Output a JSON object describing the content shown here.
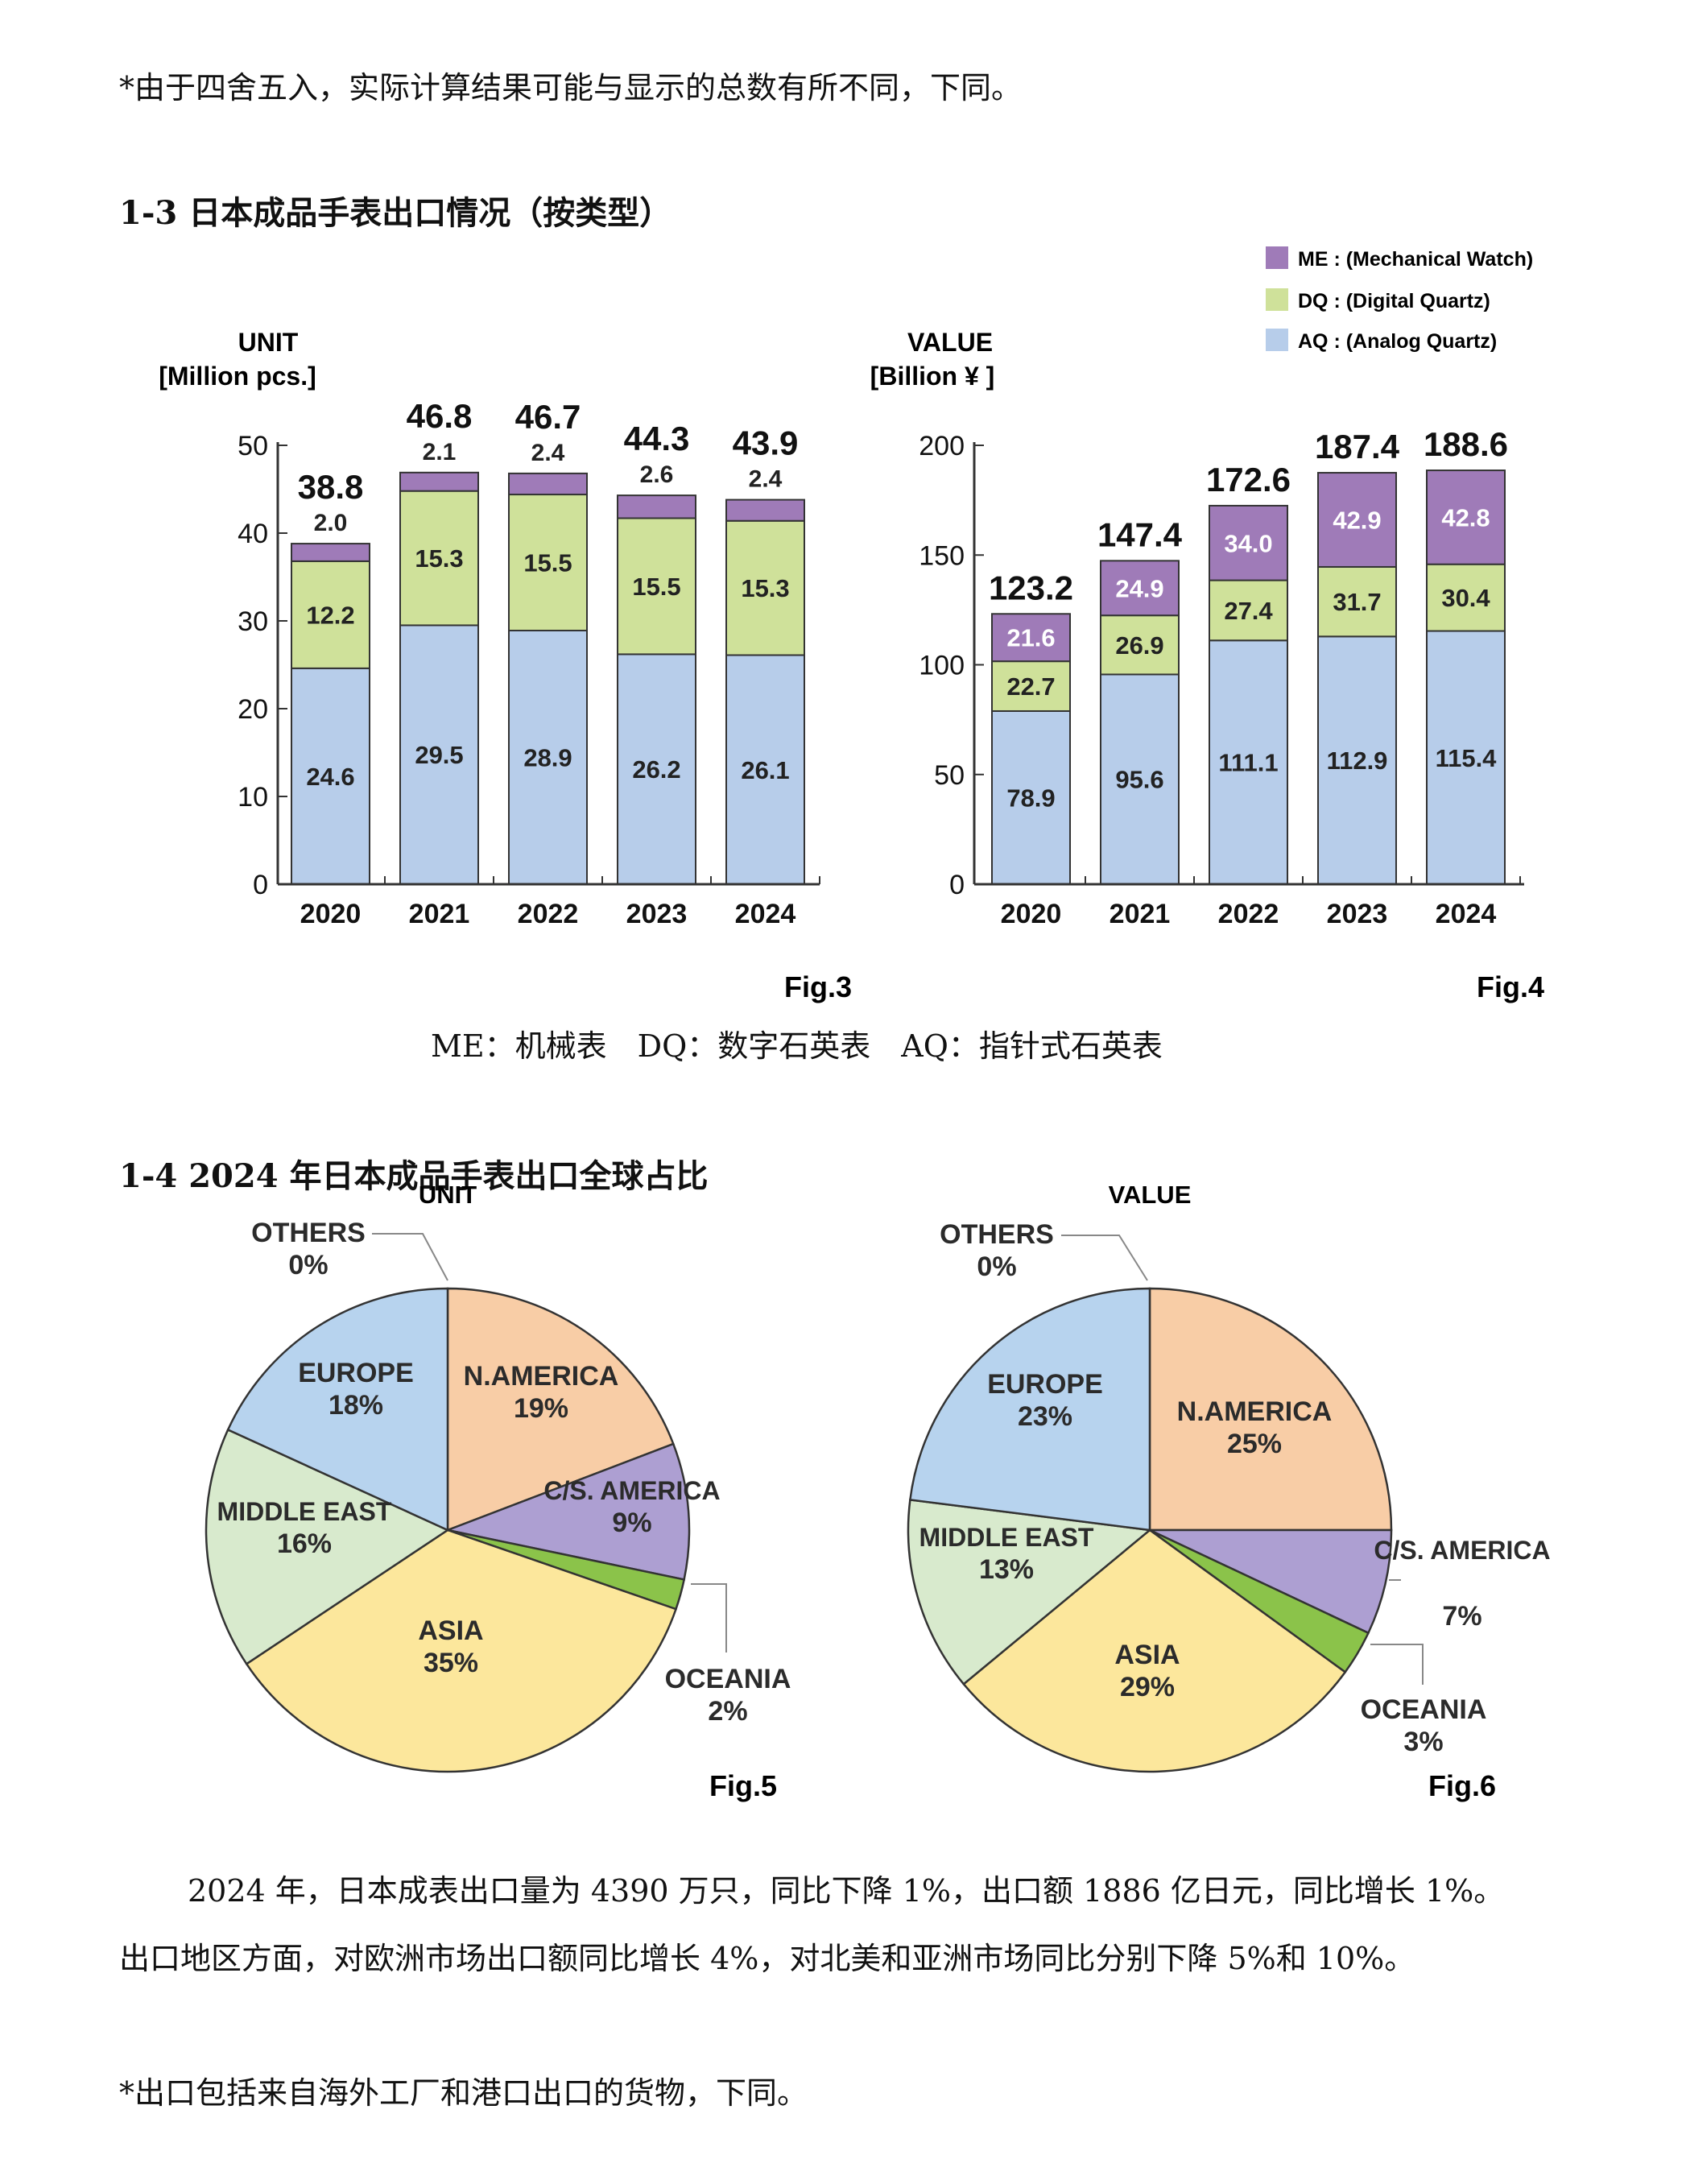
{
  "top_note": "*由于四舍五入，实际计算结果可能与显示的总数有所不同，下同。",
  "section1_title": "1-3 日本成品手表出口情况（按类型）",
  "legend": [
    {
      "label": "ME : (Mechanical Watch)",
      "color": "#9f7bb8"
    },
    {
      "label": "DQ : (Digital Quartz)",
      "color": "#cfe19a"
    },
    {
      "label": "AQ : (Analog Quartz)",
      "color": "#b7cdea"
    }
  ],
  "type_caption": "ME：机械表　DQ：数字石英表　AQ：指针式石英表",
  "section2_title": "1-4 2024 年日本成品手表出口全球占比",
  "paragraph_line1": "2024 年，日本成表出口量为 4390 万只，同比下降 1%，出口额 1886 亿日元，同比增长 1%。",
  "paragraph_line2": "出口地区方面，对欧洲市场出口额同比增长 4%，对北美和亚洲市场同比分别下降 5%和 10%。",
  "bottom_note": "*出口包括来自海外工厂和港口出口的货物，下同。",
  "chart_data": [
    {
      "type": "bar",
      "stacked": true,
      "figure_label": "Fig.3",
      "ylabel": "UNIT",
      "ylabel_unit": "[Million pcs.]",
      "categories": [
        "2020",
        "2021",
        "2022",
        "2023",
        "2024"
      ],
      "series": [
        {
          "name": "AQ",
          "values": [
            24.6,
            29.5,
            28.9,
            26.2,
            26.1
          ],
          "labels": [
            "24.6",
            "29.5",
            "28.9",
            "26.2",
            "26.1"
          ],
          "color": "#b7cdea"
        },
        {
          "name": "DQ",
          "values": [
            12.2,
            15.3,
            15.5,
            15.5,
            15.3
          ],
          "labels": [
            "12.2",
            "15.3",
            "15.5",
            "15.5",
            "15.3"
          ],
          "color": "#cfe19a"
        },
        {
          "name": "ME",
          "values": [
            2.0,
            2.1,
            2.4,
            2.6,
            2.4
          ],
          "labels": [
            "2.0",
            "2.1",
            "2.4",
            "2.6",
            "2.4"
          ],
          "color": "#9f7bb8"
        }
      ],
      "totals": [
        38.8,
        46.8,
        46.7,
        44.3,
        43.9
      ],
      "total_labels": [
        "38.8",
        "46.8",
        "46.7",
        "44.3",
        "43.9"
      ],
      "ylim": [
        0,
        50
      ],
      "yticks": [
        0,
        10,
        20,
        30,
        40,
        50
      ],
      "ytick_labels": [
        "0",
        "10",
        "20",
        "30",
        "40",
        "50"
      ],
      "grid": false
    },
    {
      "type": "bar",
      "stacked": true,
      "figure_label": "Fig.4",
      "ylabel": "VALUE",
      "ylabel_unit": "[Billion ¥ ]",
      "categories": [
        "2020",
        "2021",
        "2022",
        "2023",
        "2024"
      ],
      "series": [
        {
          "name": "AQ",
          "values": [
            78.9,
            95.6,
            111.1,
            112.9,
            115.4
          ],
          "labels": [
            "78.9",
            "95.6",
            "111.1",
            "112.9",
            "115.4"
          ],
          "color": "#b7cdea"
        },
        {
          "name": "DQ",
          "values": [
            22.7,
            26.9,
            27.4,
            31.7,
            30.4
          ],
          "labels": [
            "22.7",
            "26.9",
            "27.4",
            "31.7",
            "30.4"
          ],
          "color": "#cfe19a"
        },
        {
          "name": "ME",
          "values": [
            21.6,
            24.9,
            34.0,
            42.9,
            42.8
          ],
          "labels": [
            "21.6",
            "24.9",
            "34.0",
            "42.9",
            "42.8"
          ],
          "color": "#9f7bb8"
        }
      ],
      "totals": [
        123.2,
        147.4,
        172.6,
        187.4,
        188.6
      ],
      "total_labels": [
        "123.2",
        "147.4",
        "172.6",
        "187.4",
        "188.6"
      ],
      "ylim": [
        0,
        200
      ],
      "yticks": [
        0,
        50,
        100,
        150,
        200
      ],
      "ytick_labels": [
        "0",
        "50",
        "100",
        "150",
        "200"
      ],
      "grid": false
    },
    {
      "type": "pie",
      "figure_label": "Fig.5",
      "title": "UNIT",
      "slices": [
        {
          "name": "N.AMERICA",
          "value": 19,
          "pct": "19%",
          "color": "#f8cda6"
        },
        {
          "name": "C/S. AMERICA",
          "value": 9,
          "pct": "9%",
          "color": "#ad9fd2"
        },
        {
          "name": "OCEANIA",
          "value": 2,
          "pct": "2%",
          "color": "#8bc34a"
        },
        {
          "name": "ASIA",
          "value": 35,
          "pct": "35%",
          "color": "#fce79c"
        },
        {
          "name": "MIDDLE EAST",
          "value": 16,
          "pct": "16%",
          "color": "#d8eacd"
        },
        {
          "name": "EUROPE",
          "value": 18,
          "pct": "18%",
          "color": "#b7d3ee"
        },
        {
          "name": "OTHERS",
          "value": 0,
          "pct": "0%",
          "color": "#ffffff"
        }
      ]
    },
    {
      "type": "pie",
      "figure_label": "Fig.6",
      "title": "VALUE",
      "slices": [
        {
          "name": "N.AMERICA",
          "value": 25,
          "pct": "25%",
          "color": "#f8cda6"
        },
        {
          "name": "C/S. AMERICA",
          "value": 7,
          "pct": "7%",
          "color": "#ad9fd2"
        },
        {
          "name": "OCEANIA",
          "value": 3,
          "pct": "3%",
          "color": "#8bc34a"
        },
        {
          "name": "ASIA",
          "value": 29,
          "pct": "29%",
          "color": "#fce79c"
        },
        {
          "name": "MIDDLE EAST",
          "value": 13,
          "pct": "13%",
          "color": "#d8eacd"
        },
        {
          "name": "EUROPE",
          "value": 23,
          "pct": "23%",
          "color": "#b7d3ee"
        },
        {
          "name": "OTHERS",
          "value": 0,
          "pct": "0%",
          "color": "#ffffff"
        }
      ]
    }
  ]
}
